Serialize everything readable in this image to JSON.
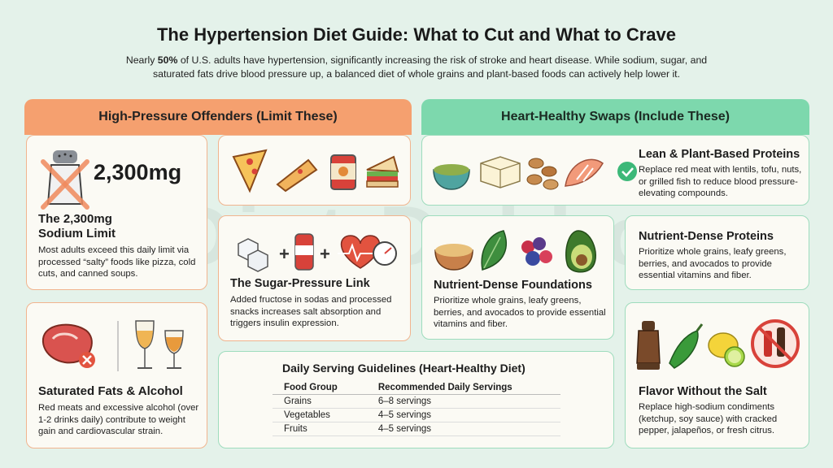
{
  "header": {
    "title": "The Hypertension Diet Guide: What to Cut and What to Crave",
    "intro_start": "Nearly",
    "intro_bold": "50%",
    "intro_end": "of U.S. adults have hypertension, significantly increasing the risk of stroke and heart disease. While sodium, sugar, and saturated fats drive blood pressure up, a balanced diet of whole grains and plant-based foods can actively help lower it."
  },
  "watermark": "Diet Dekho",
  "left_panel": {
    "heading": "High-Pressure Offenders (Limit These)",
    "sodium": {
      "figure": "2,300mg",
      "title": "The 2,300mg Sodium Limit",
      "body": "Most adults exceed this daily limit via processed “salty” foods like pizza, cold cuts, and canned soups."
    },
    "sugar": {
      "title": "The Sugar-Pressure Link",
      "body": "Added fructose in sodas and processed snacks increases salt absorption and triggers insulin expression."
    },
    "fats": {
      "title": "Saturated Fats & Alcohol",
      "body": "Red meats and excessive alcohol (over 1-2 drinks daily) contribute to weight gain and cardiovascular strain."
    }
  },
  "right_panel": {
    "heading": "Heart-Healthy Swaps (Include These)",
    "proteins": {
      "title": "Lean & Plant-Based Proteins",
      "body": "Replace red meat with lentils, tofu, nuts, or grilled fish to reduce blood pressure-elevating compounds."
    },
    "foundations": {
      "title": "Nutrient-Dense Foundations",
      "body": "Prioritize whole grains, leafy greens, berries, and avocados to provide essential vitamins and fiber."
    },
    "dense_proteins": {
      "title": "Nutrient-Dense Proteins",
      "body": "Prioritize whole grains, leafy greens, berries, and avocados to provide essential vitamins and fiber."
    },
    "flavor": {
      "title": "Flavor Without the Salt",
      "body": "Replace high-sodium condiments (ketchup, soy sauce) with cracked pepper, jalapeños, or fresh citrus."
    }
  },
  "table": {
    "title": "Daily Serving Guidelines (Heart-Healthy Diet)",
    "columns": [
      "Food Group",
      "Recommended Daily Servings"
    ],
    "rows": [
      [
        "Grains",
        "6–8 servings"
      ],
      [
        "Vegetables",
        "4–5 servings"
      ],
      [
        "Fruits",
        "4–5 servings"
      ]
    ]
  }
}
